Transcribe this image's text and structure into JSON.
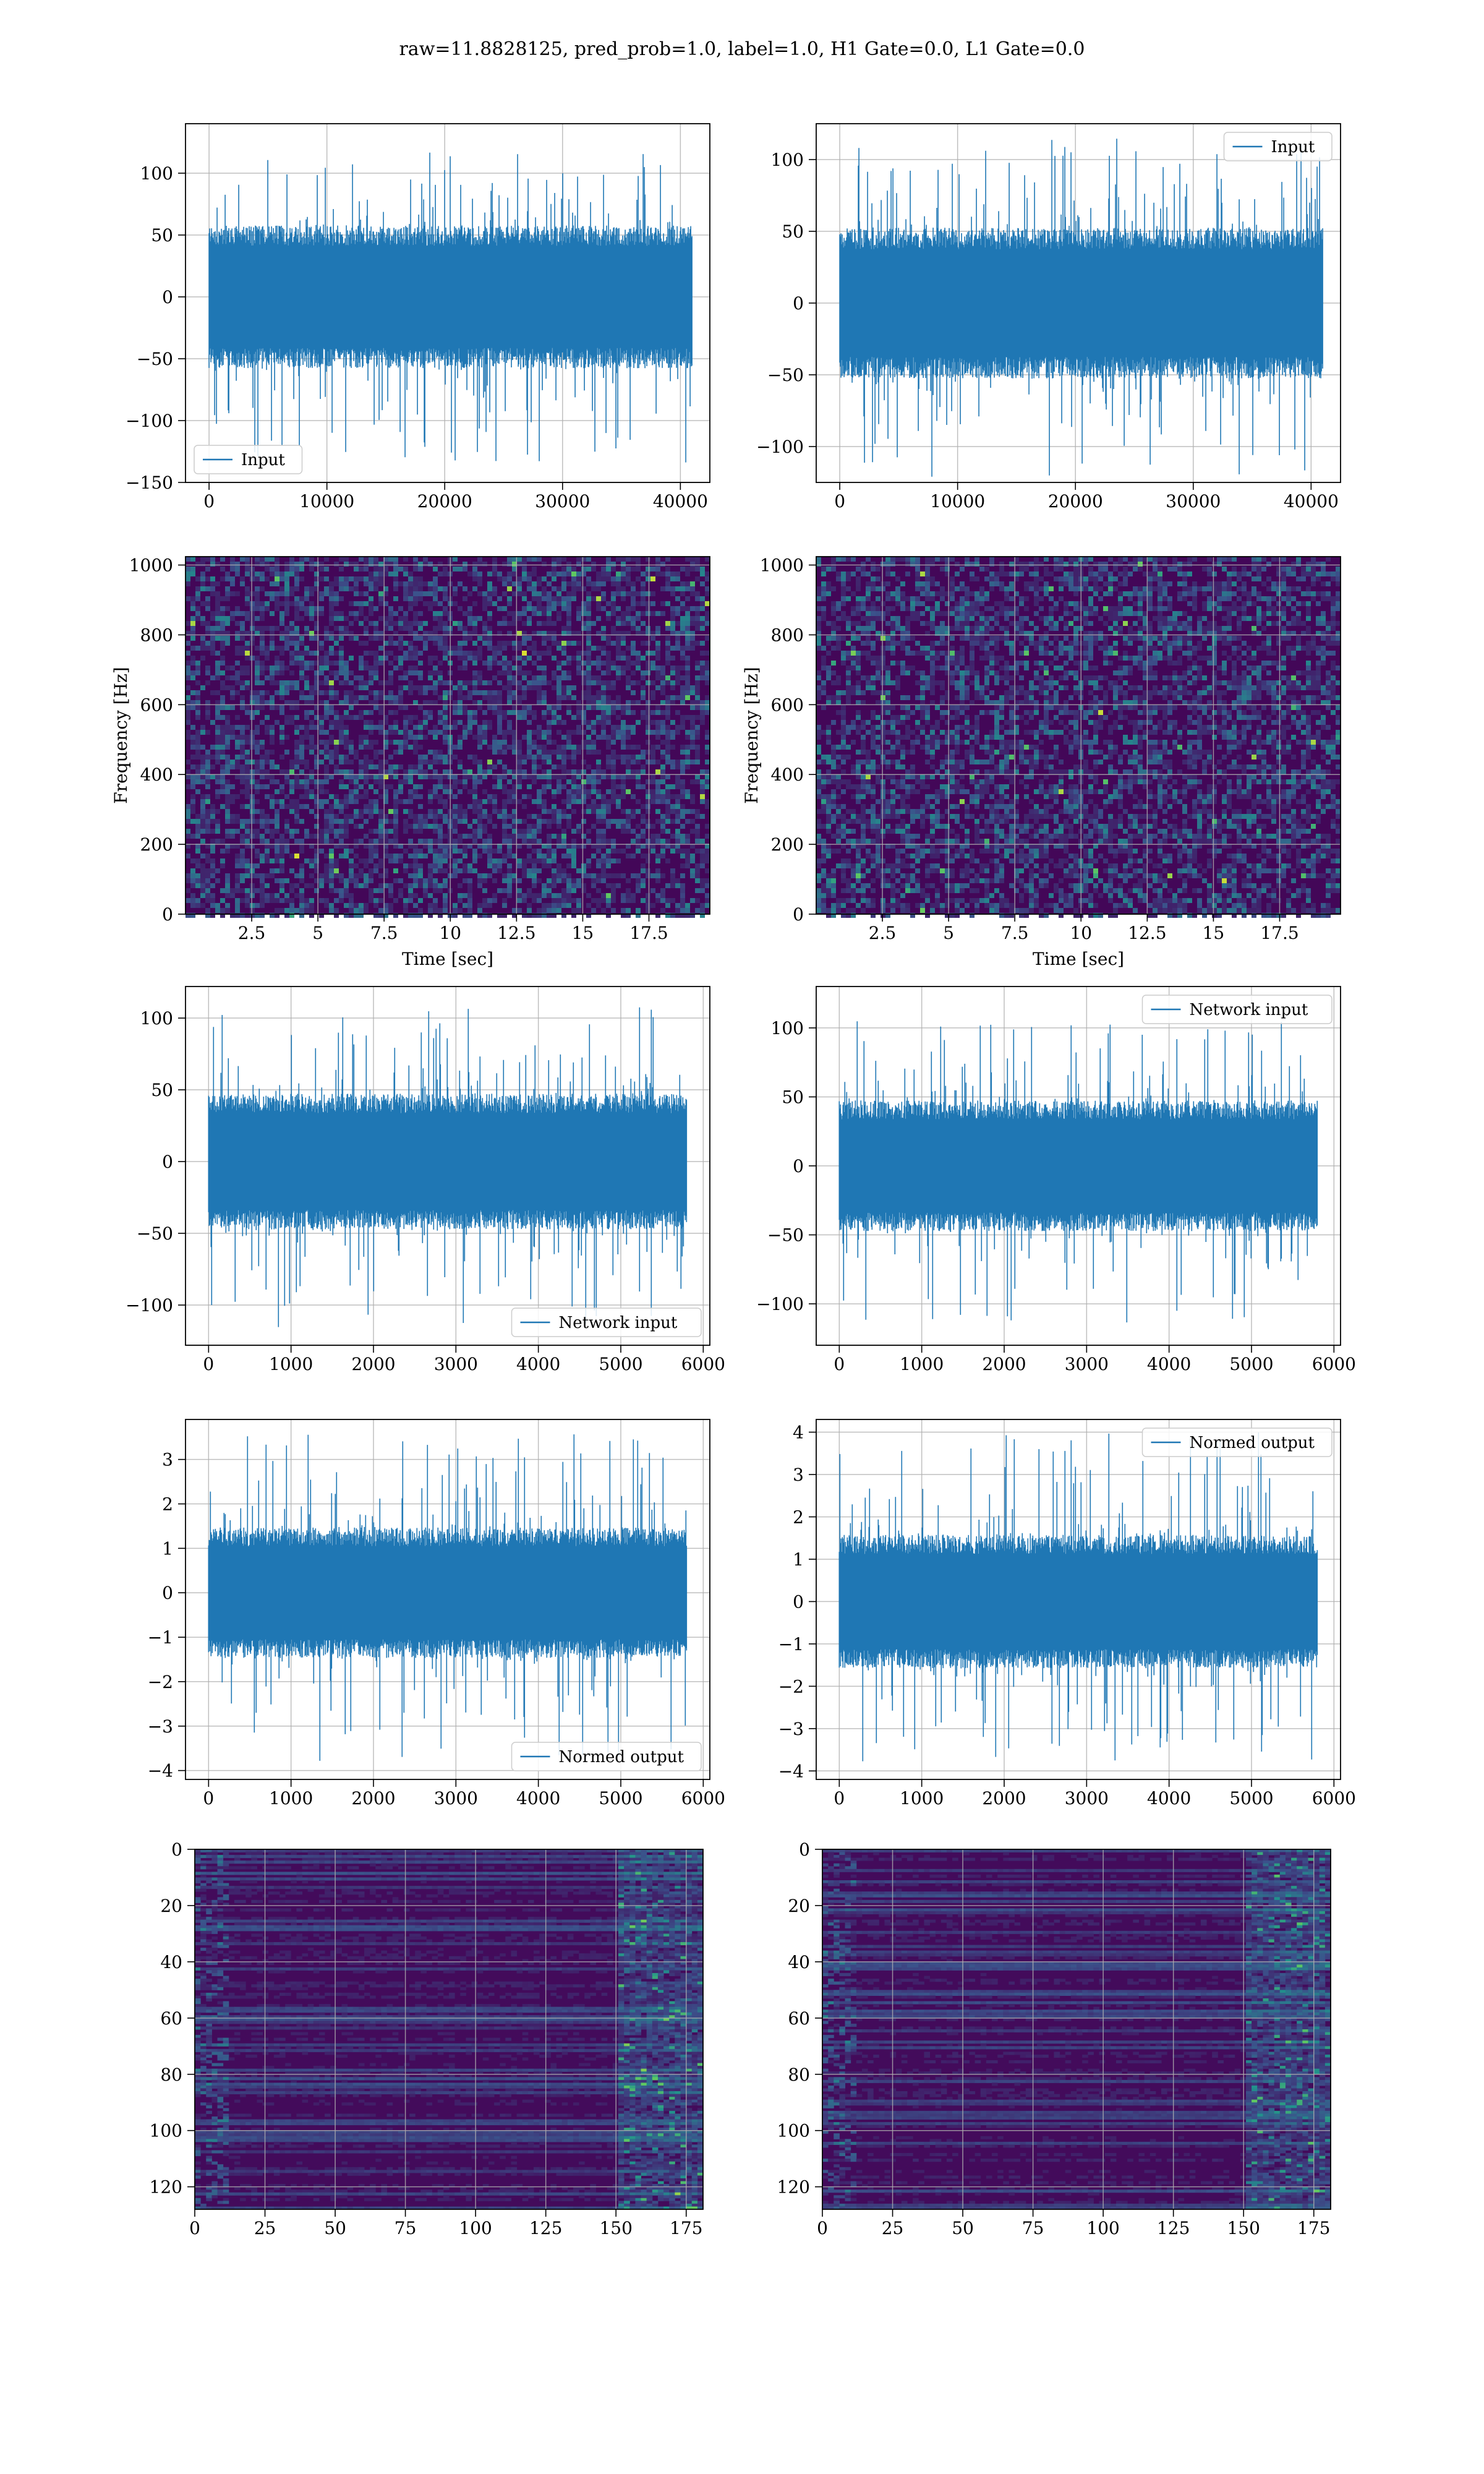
{
  "suptitle": "raw=11.8828125, pred_prob=1.0, label=1.0, H1 Gate=0.0, L1 Gate=0.0",
  "colors": {
    "line": "#1f77b4",
    "grid": "#b0b0b0",
    "viridis_low": "#440154",
    "viridis_mid": "#21918c",
    "viridis_high": "#fde725"
  },
  "chart_data": [
    {
      "id": "h1-input",
      "type": "line",
      "series": [
        {
          "name": "Input",
          "envelope_abs": 55,
          "spike_max": 120,
          "spike_min": -137,
          "n_points": 40960
        }
      ],
      "x": [
        0,
        40960
      ],
      "xlim": [
        -2000,
        42500
      ],
      "ylim": [
        -150,
        140
      ],
      "xticks": [
        0,
        10000,
        20000,
        30000,
        40000
      ],
      "yticks": [
        -150,
        -100,
        -50,
        0,
        50,
        100
      ],
      "legend": "lower-left",
      "grid": true,
      "xlabel": "",
      "ylabel": ""
    },
    {
      "id": "l1-input",
      "type": "line",
      "series": [
        {
          "name": "Input",
          "envelope_abs": 50,
          "spike_max": 115,
          "spike_min": -122,
          "n_points": 40960
        }
      ],
      "x": [
        0,
        40960
      ],
      "xlim": [
        -2000,
        42500
      ],
      "ylim": [
        -125,
        125
      ],
      "xticks": [
        0,
        10000,
        20000,
        30000,
        40000
      ],
      "yticks": [
        -100,
        -50,
        0,
        50,
        100
      ],
      "legend": "upper-right",
      "grid": true,
      "xlabel": "",
      "ylabel": ""
    },
    {
      "id": "h1-spectrogram",
      "type": "heatmap",
      "xlabel": "Time [sec]",
      "ylabel": "Frequency [Hz]",
      "xlim": [
        0,
        19.8
      ],
      "ylim": [
        0,
        1024
      ],
      "xticks": [
        2.5,
        5.0,
        7.5,
        10.0,
        12.5,
        15.0,
        17.5
      ],
      "yticks": [
        0,
        200,
        400,
        600,
        800,
        1000
      ],
      "colormap": "viridis",
      "grid": true
    },
    {
      "id": "l1-spectrogram",
      "type": "heatmap",
      "xlabel": "Time [sec]",
      "ylabel": "Frequency [Hz]",
      "xlim": [
        0,
        19.8
      ],
      "ylim": [
        0,
        1024
      ],
      "xticks": [
        2.5,
        5.0,
        7.5,
        10.0,
        12.5,
        15.0,
        17.5
      ],
      "yticks": [
        0,
        200,
        400,
        600,
        800,
        1000
      ],
      "colormap": "viridis",
      "grid": true
    },
    {
      "id": "h1-network-input",
      "type": "line",
      "series": [
        {
          "name": "Network input",
          "envelope_abs": 45,
          "spike_max": 108,
          "spike_min": -117,
          "n_points": 5800
        }
      ],
      "x": [
        0,
        5800
      ],
      "xlim": [
        -280,
        6080
      ],
      "ylim": [
        -128,
        122
      ],
      "xticks": [
        0,
        1000,
        2000,
        3000,
        4000,
        5000,
        6000
      ],
      "yticks": [
        -100,
        -50,
        0,
        50,
        100
      ],
      "legend": "lower-right",
      "grid": true,
      "xlabel": "",
      "ylabel": ""
    },
    {
      "id": "l1-network-input",
      "type": "line",
      "series": [
        {
          "name": "Network input",
          "envelope_abs": 45,
          "spike_max": 105,
          "spike_min": -115,
          "n_points": 5800
        }
      ],
      "x": [
        0,
        5800
      ],
      "xlim": [
        -280,
        6080
      ],
      "ylim": [
        -130,
        130
      ],
      "xticks": [
        0,
        1000,
        2000,
        3000,
        4000,
        5000,
        6000
      ],
      "yticks": [
        -100,
        -50,
        0,
        50,
        100
      ],
      "legend": "upper-right",
      "grid": true,
      "xlabel": "",
      "ylabel": ""
    },
    {
      "id": "h1-normed-output",
      "type": "line",
      "series": [
        {
          "name": "Normed output",
          "envelope_abs": 1.4,
          "spike_max": 3.6,
          "spike_min": -3.8,
          "n_points": 5800
        }
      ],
      "x": [
        0,
        5800
      ],
      "xlim": [
        -280,
        6080
      ],
      "ylim": [
        -4.2,
        3.9
      ],
      "xticks": [
        0,
        1000,
        2000,
        3000,
        4000,
        5000,
        6000
      ],
      "yticks": [
        -4,
        -3,
        -2,
        -1,
        0,
        1,
        2,
        3
      ],
      "legend": "lower-right",
      "grid": true,
      "xlabel": "",
      "ylabel": ""
    },
    {
      "id": "l1-normed-output",
      "type": "line",
      "series": [
        {
          "name": "Normed output",
          "envelope_abs": 1.5,
          "spike_max": 4.0,
          "spike_min": -3.8,
          "n_points": 5800
        }
      ],
      "x": [
        0,
        5800
      ],
      "xlim": [
        -280,
        6080
      ],
      "ylim": [
        -4.2,
        4.3
      ],
      "xticks": [
        0,
        1000,
        2000,
        3000,
        4000,
        5000,
        6000
      ],
      "yticks": [
        -4,
        -3,
        -2,
        -1,
        0,
        1,
        2,
        3,
        4
      ],
      "legend": "upper-right",
      "grid": true,
      "xlabel": "",
      "ylabel": ""
    },
    {
      "id": "h1-features",
      "type": "heatmap",
      "xlim": [
        0,
        181
      ],
      "ylim": [
        128,
        0
      ],
      "xticks": [
        0,
        25,
        50,
        75,
        100,
        125,
        150,
        175
      ],
      "yticks": [
        0,
        20,
        40,
        60,
        80,
        100,
        120
      ],
      "colormap": "viridis",
      "grid": true,
      "xlabel": "",
      "ylabel": ""
    },
    {
      "id": "l1-features",
      "type": "heatmap",
      "xlim": [
        0,
        181
      ],
      "ylim": [
        128,
        0
      ],
      "xticks": [
        0,
        25,
        50,
        75,
        100,
        125,
        150,
        175
      ],
      "yticks": [
        0,
        20,
        40,
        60,
        80,
        100,
        120
      ],
      "colormap": "viridis",
      "grid": true,
      "xlabel": "",
      "ylabel": ""
    }
  ]
}
